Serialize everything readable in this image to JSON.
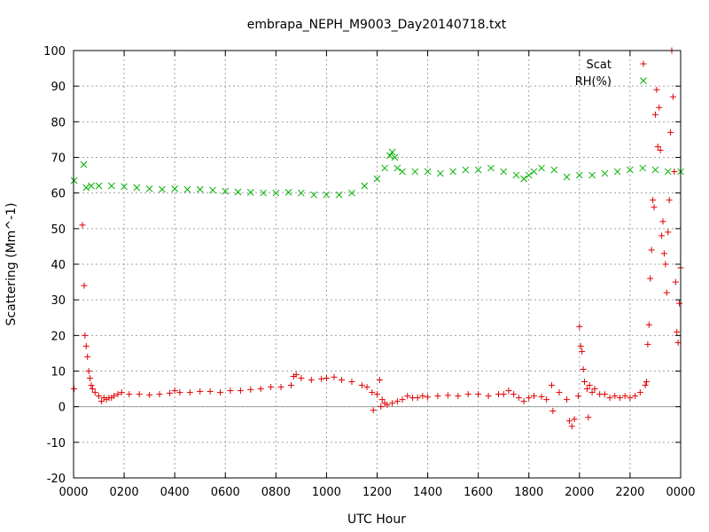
{
  "chart_data": {
    "type": "scatter",
    "title": "embrapa_NEPH_M9003_Day20140718.txt",
    "xlabel": "UTC Hour",
    "ylabel": "Scattering (Mm^-1)",
    "xlim": [
      0,
      24
    ],
    "ylim": [
      -20,
      100
    ],
    "grid": true,
    "legend_position": "top-right",
    "x_ticks": [
      {
        "value": 0,
        "label": "0000"
      },
      {
        "value": 2,
        "label": "0200"
      },
      {
        "value": 4,
        "label": "0400"
      },
      {
        "value": 6,
        "label": "0600"
      },
      {
        "value": 8,
        "label": "0800"
      },
      {
        "value": 10,
        "label": "1000"
      },
      {
        "value": 12,
        "label": "1200"
      },
      {
        "value": 14,
        "label": "1400"
      },
      {
        "value": 16,
        "label": "1600"
      },
      {
        "value": 18,
        "label": "1800"
      },
      {
        "value": 20,
        "label": "2000"
      },
      {
        "value": 22,
        "label": "2200"
      },
      {
        "value": 24,
        "label": "0000"
      }
    ],
    "y_ticks": [
      -20,
      -10,
      0,
      10,
      20,
      30,
      40,
      50,
      60,
      70,
      80,
      90,
      100
    ],
    "series": [
      {
        "name": "Scat",
        "marker": "+",
        "color": "#e00000",
        "points": [
          [
            0.02,
            5
          ],
          [
            0.35,
            51
          ],
          [
            0.42,
            34
          ],
          [
            0.45,
            20
          ],
          [
            0.5,
            17
          ],
          [
            0.55,
            14
          ],
          [
            0.6,
            10
          ],
          [
            0.65,
            8
          ],
          [
            0.7,
            6
          ],
          [
            0.75,
            5
          ],
          [
            0.85,
            4
          ],
          [
            1.0,
            3
          ],
          [
            1.1,
            1.5
          ],
          [
            1.2,
            2.5
          ],
          [
            1.3,
            2
          ],
          [
            1.4,
            2.5
          ],
          [
            1.5,
            2.5
          ],
          [
            1.6,
            3
          ],
          [
            1.75,
            3.5
          ],
          [
            1.9,
            4
          ],
          [
            2.2,
            3.5
          ],
          [
            2.6,
            3.5
          ],
          [
            3.0,
            3.3
          ],
          [
            3.4,
            3.5
          ],
          [
            3.8,
            3.8
          ],
          [
            4.0,
            4.5
          ],
          [
            4.2,
            4
          ],
          [
            4.6,
            4
          ],
          [
            5.0,
            4.3
          ],
          [
            5.4,
            4.3
          ],
          [
            5.8,
            4
          ],
          [
            6.2,
            4.5
          ],
          [
            6.6,
            4.5
          ],
          [
            7.0,
            4.8
          ],
          [
            7.4,
            5
          ],
          [
            7.8,
            5.5
          ],
          [
            8.2,
            5.5
          ],
          [
            8.6,
            6
          ],
          [
            8.7,
            8.5
          ],
          [
            8.8,
            9
          ],
          [
            9.0,
            8
          ],
          [
            9.4,
            7.5
          ],
          [
            9.8,
            7.8
          ],
          [
            10.0,
            8
          ],
          [
            10.3,
            8.3
          ],
          [
            10.6,
            7.5
          ],
          [
            11.0,
            7
          ],
          [
            11.4,
            6
          ],
          [
            11.6,
            5.5
          ],
          [
            11.8,
            4
          ],
          [
            11.85,
            -1
          ],
          [
            12.0,
            3.5
          ],
          [
            12.1,
            7.5
          ],
          [
            12.15,
            0
          ],
          [
            12.2,
            2
          ],
          [
            12.3,
            1
          ],
          [
            12.4,
            0.5
          ],
          [
            12.6,
            1
          ],
          [
            12.8,
            1.5
          ],
          [
            13.0,
            2
          ],
          [
            13.2,
            3
          ],
          [
            13.4,
            2.5
          ],
          [
            13.6,
            2.5
          ],
          [
            13.8,
            3
          ],
          [
            14.0,
            2.7
          ],
          [
            14.4,
            3
          ],
          [
            14.8,
            3.2
          ],
          [
            15.2,
            3
          ],
          [
            15.6,
            3.5
          ],
          [
            16.0,
            3.5
          ],
          [
            16.4,
            3
          ],
          [
            16.8,
            3.5
          ],
          [
            17.0,
            3.5
          ],
          [
            17.2,
            4.5
          ],
          [
            17.4,
            3.5
          ],
          [
            17.6,
            2.5
          ],
          [
            17.8,
            1.5
          ],
          [
            18.0,
            2.5
          ],
          [
            18.2,
            3
          ],
          [
            18.5,
            2.8
          ],
          [
            18.7,
            2
          ],
          [
            18.9,
            6
          ],
          [
            18.95,
            -1.2
          ],
          [
            19.2,
            4
          ],
          [
            19.5,
            2
          ],
          [
            19.6,
            -4
          ],
          [
            19.7,
            -5.5
          ],
          [
            19.8,
            -3.5
          ],
          [
            19.95,
            3
          ],
          [
            20.0,
            22.5
          ],
          [
            20.05,
            17
          ],
          [
            20.1,
            15.5
          ],
          [
            20.15,
            10.5
          ],
          [
            20.2,
            7
          ],
          [
            20.3,
            5
          ],
          [
            20.35,
            -3
          ],
          [
            20.4,
            6
          ],
          [
            20.5,
            4
          ],
          [
            20.6,
            5
          ],
          [
            20.8,
            3.5
          ],
          [
            21.0,
            3.5
          ],
          [
            21.2,
            2.5
          ],
          [
            21.4,
            3
          ],
          [
            21.6,
            2.5
          ],
          [
            21.8,
            3
          ],
          [
            22.0,
            2.5
          ],
          [
            22.2,
            3
          ],
          [
            22.4,
            4
          ],
          [
            22.6,
            6
          ],
          [
            22.65,
            7
          ],
          [
            22.7,
            17.5
          ],
          [
            22.75,
            23
          ],
          [
            22.8,
            36
          ],
          [
            22.85,
            44
          ],
          [
            22.9,
            58
          ],
          [
            22.95,
            56
          ],
          [
            23.0,
            82
          ],
          [
            23.05,
            89
          ],
          [
            23.1,
            73
          ],
          [
            23.15,
            84
          ],
          [
            23.2,
            72
          ],
          [
            23.25,
            48
          ],
          [
            23.3,
            52
          ],
          [
            23.35,
            43
          ],
          [
            23.4,
            40
          ],
          [
            23.45,
            32
          ],
          [
            23.5,
            49
          ],
          [
            23.55,
            58
          ],
          [
            23.6,
            77
          ],
          [
            23.65,
            100
          ],
          [
            23.7,
            87
          ],
          [
            23.75,
            66
          ],
          [
            23.8,
            35
          ],
          [
            23.85,
            21
          ],
          [
            23.9,
            18
          ],
          [
            23.95,
            29
          ],
          [
            24.0,
            39
          ]
        ]
      },
      {
        "name": "RH(%)",
        "marker": "x",
        "color": "#00b000",
        "points": [
          [
            0.02,
            63.5
          ],
          [
            0.4,
            68
          ],
          [
            0.5,
            61.5
          ],
          [
            0.7,
            62
          ],
          [
            1.0,
            62
          ],
          [
            1.5,
            62
          ],
          [
            2.0,
            61.8
          ],
          [
            2.5,
            61.5
          ],
          [
            3.0,
            61.2
          ],
          [
            3.5,
            61
          ],
          [
            4.0,
            61.2
          ],
          [
            4.5,
            61
          ],
          [
            5.0,
            61
          ],
          [
            5.5,
            60.8
          ],
          [
            6.0,
            60.5
          ],
          [
            6.5,
            60.3
          ],
          [
            7.0,
            60.2
          ],
          [
            7.5,
            60
          ],
          [
            8.0,
            60
          ],
          [
            8.5,
            60.2
          ],
          [
            9.0,
            60
          ],
          [
            9.5,
            59.5
          ],
          [
            10.0,
            59.5
          ],
          [
            10.5,
            59.5
          ],
          [
            11.0,
            60
          ],
          [
            11.5,
            62
          ],
          [
            12.0,
            64
          ],
          [
            12.3,
            67
          ],
          [
            12.5,
            70.5
          ],
          [
            12.6,
            71.5
          ],
          [
            12.7,
            70
          ],
          [
            12.8,
            67
          ],
          [
            13.0,
            66
          ],
          [
            13.5,
            66
          ],
          [
            14.0,
            66
          ],
          [
            14.5,
            65.5
          ],
          [
            15.0,
            66
          ],
          [
            15.5,
            66.5
          ],
          [
            16.0,
            66.5
          ],
          [
            16.5,
            67
          ],
          [
            17.0,
            66
          ],
          [
            17.5,
            65
          ],
          [
            17.8,
            64
          ],
          [
            18.0,
            65
          ],
          [
            18.2,
            66
          ],
          [
            18.5,
            67
          ],
          [
            19.0,
            66.5
          ],
          [
            19.5,
            64.5
          ],
          [
            20.0,
            65
          ],
          [
            20.5,
            65
          ],
          [
            21.0,
            65.5
          ],
          [
            21.5,
            66
          ],
          [
            22.0,
            66.5
          ],
          [
            22.5,
            67
          ],
          [
            23.0,
            66.5
          ],
          [
            23.5,
            66
          ],
          [
            24.0,
            66
          ]
        ]
      }
    ]
  }
}
